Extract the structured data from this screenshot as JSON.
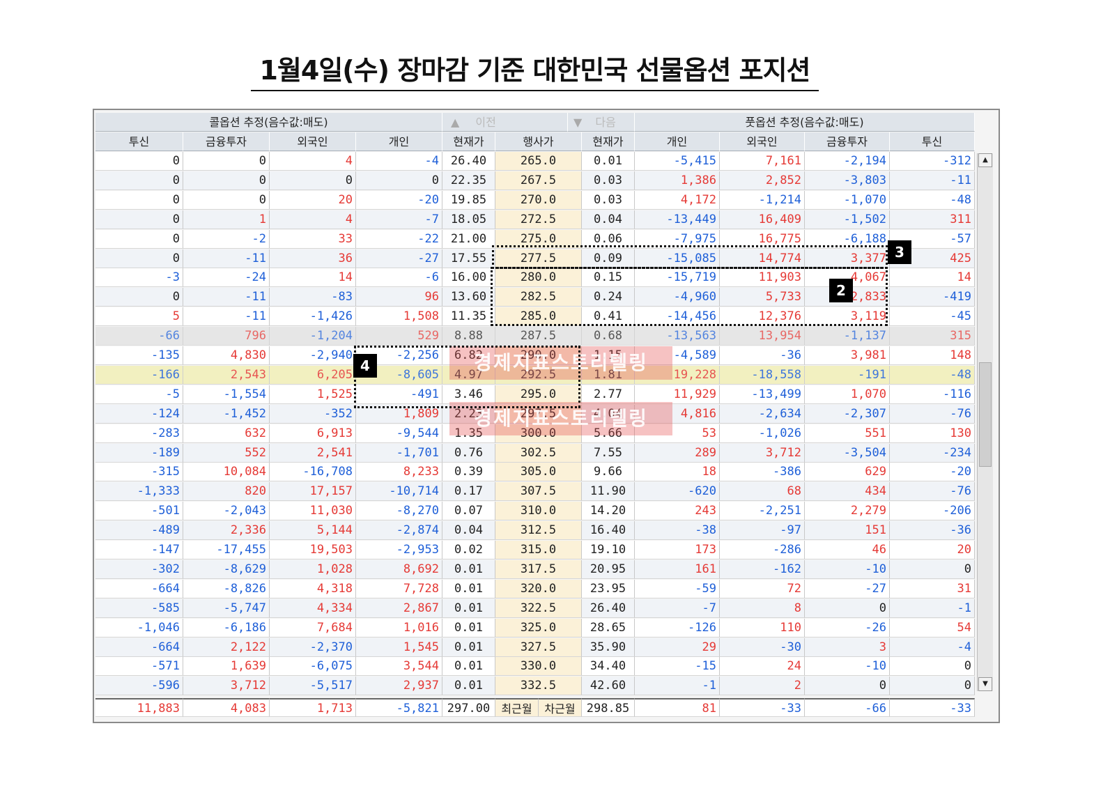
{
  "title": "1월4일(수) 장마감 기준 대한민국 선물옵션 포지션",
  "header": {
    "call_group": "콜옵션 추정(음수값:매도)",
    "put_group": "풋옵션 추정(음수값:매도)",
    "prev_label": "이전",
    "next_label": "다음",
    "prev_icon": "triangle-up-icon",
    "next_icon": "triangle-down-icon",
    "columns": [
      "투신",
      "금융투자",
      "외국인",
      "개인",
      "현재가",
      "행사가",
      "현재가",
      "개인",
      "외국인",
      "금융투자",
      "투신"
    ]
  },
  "rows": [
    [
      "0",
      "0",
      "4",
      "-4",
      "26.40",
      "265.0",
      "0.01",
      "-5,415",
      "7,161",
      "-2,194",
      "-312"
    ],
    [
      "0",
      "0",
      "0",
      "0",
      "22.35",
      "267.5",
      "0.03",
      "1,386",
      "2,852",
      "-3,803",
      "-11"
    ],
    [
      "0",
      "0",
      "20",
      "-20",
      "19.85",
      "270.0",
      "0.03",
      "4,172",
      "-1,214",
      "-1,070",
      "-48"
    ],
    [
      "0",
      "1",
      "4",
      "-7",
      "18.05",
      "272.5",
      "0.04",
      "-13,449",
      "16,409",
      "-1,502",
      "311"
    ],
    [
      "0",
      "-2",
      "33",
      "-22",
      "21.00",
      "275.0",
      "0.06",
      "-7,975",
      "16,775",
      "-6,188",
      "-57"
    ],
    [
      "0",
      "-11",
      "36",
      "-27",
      "17.55",
      "277.5",
      "0.09",
      "-15,085",
      "14,774",
      "3,377",
      "425"
    ],
    [
      "-3",
      "-24",
      "14",
      "-6",
      "16.00",
      "280.0",
      "0.15",
      "-15,719",
      "11,903",
      "4,067",
      "14"
    ],
    [
      "0",
      "-11",
      "-83",
      "96",
      "13.60",
      "282.5",
      "0.24",
      "-4,960",
      "5,733",
      "2,833",
      "-419"
    ],
    [
      "5",
      "-11",
      "-1,426",
      "1,508",
      "11.35",
      "285.0",
      "0.41",
      "-14,456",
      "12,376",
      "3,119",
      "-45"
    ],
    [
      "-66",
      "796",
      "-1,204",
      "529",
      "8.88",
      "287.5",
      "0.68",
      "-13,563",
      "13,954",
      "-1,137",
      "315"
    ],
    [
      "-135",
      "4,830",
      "-2,940",
      "-2,256",
      "6.82",
      "290.0",
      "1.15",
      "-4,589",
      "-36",
      "3,981",
      "148"
    ],
    [
      "-166",
      "2,543",
      "6,205",
      "-8,605",
      "4.97",
      "292.5",
      "1.81",
      "19,228",
      "-18,558",
      "-191",
      "-48"
    ],
    [
      "-5",
      "-1,554",
      "1,525",
      "-491",
      "3.46",
      "295.0",
      "2.77",
      "11,929",
      "-13,499",
      "1,070",
      "-116"
    ],
    [
      "-124",
      "-1,452",
      "-352",
      "1,809",
      "2.23",
      "297.5",
      "4.04",
      "4,816",
      "-2,634",
      "-2,307",
      "-76"
    ],
    [
      "-283",
      "632",
      "6,913",
      "-9,544",
      "1.35",
      "300.0",
      "5.66",
      "53",
      "-1,026",
      "551",
      "130"
    ],
    [
      "-189",
      "552",
      "2,541",
      "-1,701",
      "0.76",
      "302.5",
      "7.55",
      "289",
      "3,712",
      "-3,504",
      "-234"
    ],
    [
      "-315",
      "10,084",
      "-16,708",
      "8,233",
      "0.39",
      "305.0",
      "9.66",
      "18",
      "-386",
      "629",
      "-20"
    ],
    [
      "-1,333",
      "820",
      "17,157",
      "-10,714",
      "0.17",
      "307.5",
      "11.90",
      "-620",
      "68",
      "434",
      "-76"
    ],
    [
      "-501",
      "-2,043",
      "11,030",
      "-8,270",
      "0.07",
      "310.0",
      "14.20",
      "243",
      "-2,251",
      "2,279",
      "-206"
    ],
    [
      "-489",
      "2,336",
      "5,144",
      "-2,874",
      "0.04",
      "312.5",
      "16.40",
      "-38",
      "-97",
      "151",
      "-36"
    ],
    [
      "-147",
      "-17,455",
      "19,503",
      "-2,953",
      "0.02",
      "315.0",
      "19.10",
      "173",
      "-286",
      "46",
      "20"
    ],
    [
      "-302",
      "-8,629",
      "1,028",
      "8,692",
      "0.01",
      "317.5",
      "20.95",
      "161",
      "-162",
      "-10",
      "0"
    ],
    [
      "-664",
      "-8,826",
      "4,318",
      "7,728",
      "0.01",
      "320.0",
      "23.95",
      "-59",
      "72",
      "-27",
      "31"
    ],
    [
      "-585",
      "-5,747",
      "4,334",
      "2,867",
      "0.01",
      "322.5",
      "26.40",
      "-7",
      "8",
      "0",
      "-1"
    ],
    [
      "-1,046",
      "-6,186",
      "7,684",
      "1,016",
      "0.01",
      "325.0",
      "28.65",
      "-126",
      "110",
      "-26",
      "54"
    ],
    [
      "-664",
      "2,122",
      "-2,370",
      "1,545",
      "0.01",
      "327.5",
      "35.90",
      "29",
      "-30",
      "3",
      "-4"
    ],
    [
      "-571",
      "1,639",
      "-6,075",
      "3,544",
      "0.01",
      "330.0",
      "34.40",
      "-15",
      "24",
      "-10",
      "0"
    ],
    [
      "-596",
      "3,712",
      "-5,517",
      "2,937",
      "0.01",
      "332.5",
      "42.60",
      "-1",
      "2",
      "0",
      "0"
    ]
  ],
  "total_row": [
    "11,883",
    "4,083",
    "1,713",
    "-5,821",
    "297.00",
    "최근월",
    "차근월",
    "298.85",
    "81",
    "-33",
    "-66",
    "-33"
  ],
  "annotations": [
    "3",
    "2",
    "4"
  ],
  "watermark": [
    "경제지표스토리텔링",
    "경제지표스토리텔링"
  ],
  "scroll_up_icon": "triangle-up-icon",
  "scroll_down_icon": "triangle-down-icon",
  "colors": {
    "positive": "#e53935",
    "negative": "#1e5fd8",
    "strike_bg": "#fbf1d8",
    "header_bg": "#dfe4ea"
  }
}
